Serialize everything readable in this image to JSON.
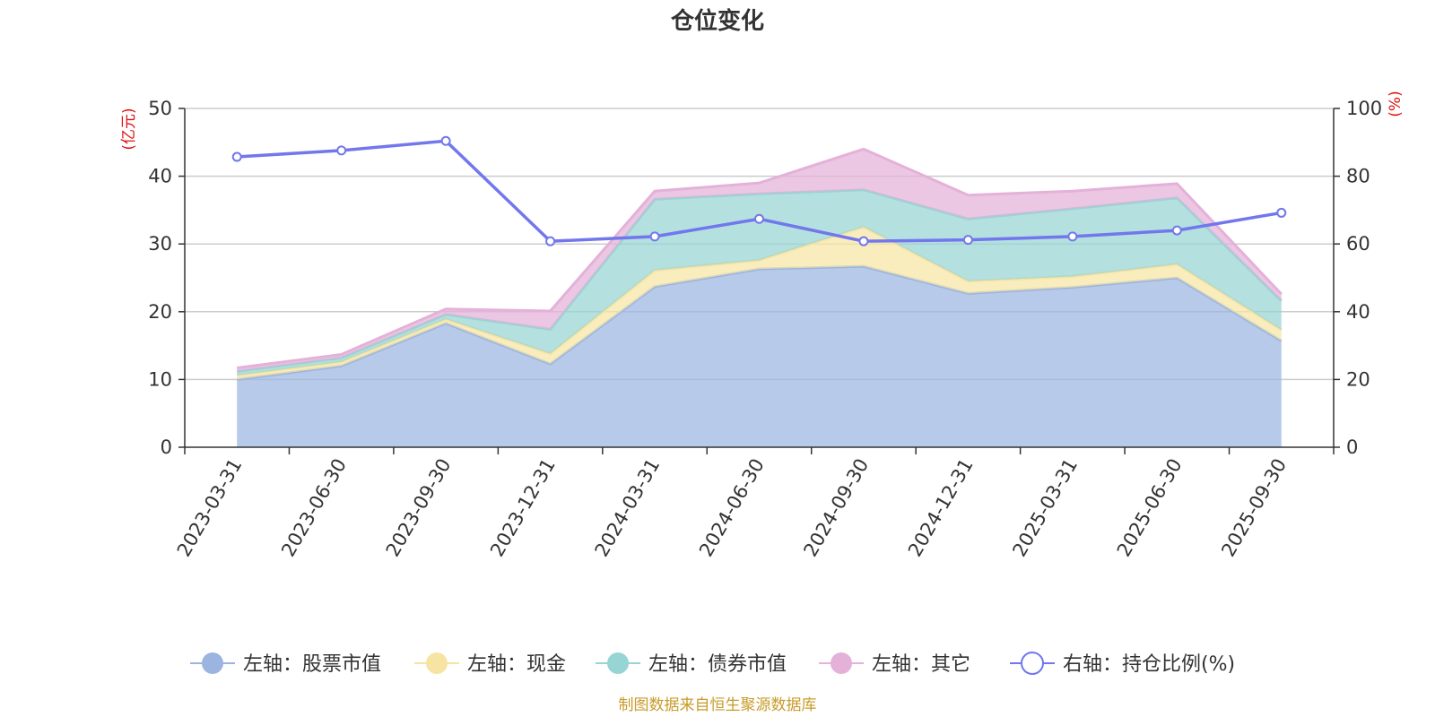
{
  "chart_data": {
    "type": "area",
    "title": "仓位变化",
    "categories": [
      "2023-03-31",
      "2023-06-30",
      "2023-09-30",
      "2023-12-31",
      "2024-03-31",
      "2024-06-30",
      "2024-09-30",
      "2024-12-31",
      "2025-03-31",
      "2025-06-30",
      "2025-09-30"
    ],
    "left_axis": {
      "unit_label": "(亿元)",
      "ylim": [
        0,
        50
      ],
      "ticks": [
        0,
        10,
        20,
        30,
        40,
        50
      ]
    },
    "right_axis": {
      "unit_label": "(%)",
      "ylim": [
        0,
        100
      ],
      "ticks": [
        0,
        20,
        40,
        60,
        80,
        100
      ]
    },
    "series": [
      {
        "name": "左轴：股票市值",
        "type": "stacked-area",
        "axis": "left",
        "color": "#9bb5e0",
        "values": [
          10.0,
          12.0,
          18.3,
          12.3,
          23.7,
          26.3,
          26.7,
          22.7,
          23.6,
          25.0,
          15.7
        ]
      },
      {
        "name": "左轴：现金",
        "type": "stacked-area",
        "axis": "left",
        "color": "#f7e4a3",
        "values": [
          0.6,
          0.6,
          0.6,
          1.5,
          2.4,
          1.3,
          5.8,
          1.8,
          1.6,
          2.0,
          1.6
        ]
      },
      {
        "name": "左轴：债券市值",
        "type": "stacked-area",
        "axis": "left",
        "color": "#97d4d4",
        "values": [
          0.6,
          0.6,
          0.7,
          3.6,
          10.5,
          9.8,
          5.5,
          9.2,
          10.0,
          9.8,
          4.3
        ]
      },
      {
        "name": "左轴：其它",
        "type": "stacked-area",
        "axis": "left",
        "color": "#e4b1d8",
        "values": [
          0.5,
          0.5,
          0.8,
          2.7,
          1.2,
          1.6,
          6.0,
          3.5,
          2.6,
          2.1,
          1.0
        ]
      },
      {
        "name": "右轴：持仓比例(%)",
        "type": "line",
        "axis": "right",
        "color": "#7277ec",
        "values": [
          85.7,
          87.6,
          90.4,
          60.8,
          62.2,
          67.4,
          60.8,
          61.2,
          62.2,
          64.0,
          69.2
        ]
      }
    ],
    "source_note": "制图数据来自恒生聚源数据库"
  }
}
